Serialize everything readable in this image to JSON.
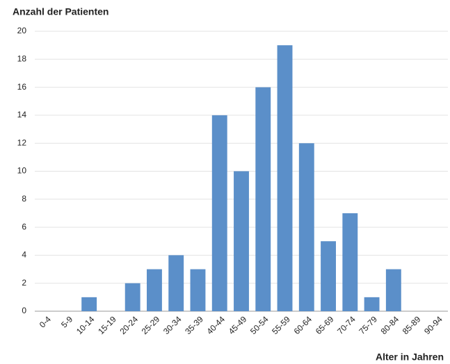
{
  "chart_data": {
    "type": "bar",
    "title": "Anzahl der Patienten",
    "x_label": "Alter in Jahren",
    "categories": [
      "0-4",
      "5-9",
      "10-14",
      "15-19",
      "20-24",
      "25-29",
      "30-34",
      "35-39",
      "40-44",
      "45-49",
      "50-54",
      "55-59",
      "60-64",
      "65-69",
      "70-74",
      "75-79",
      "80-84",
      "85-89",
      "90-94"
    ],
    "values": [
      0,
      0,
      1,
      0,
      2,
      3,
      4,
      3,
      14,
      10,
      16,
      19,
      12,
      5,
      7,
      1,
      3,
      0,
      0
    ],
    "color": "#5b8fc9",
    "ylim": [
      0,
      20
    ],
    "yticks": [
      0,
      2,
      4,
      6,
      8,
      10,
      12,
      14,
      16,
      18,
      20
    ],
    "grid": true
  }
}
